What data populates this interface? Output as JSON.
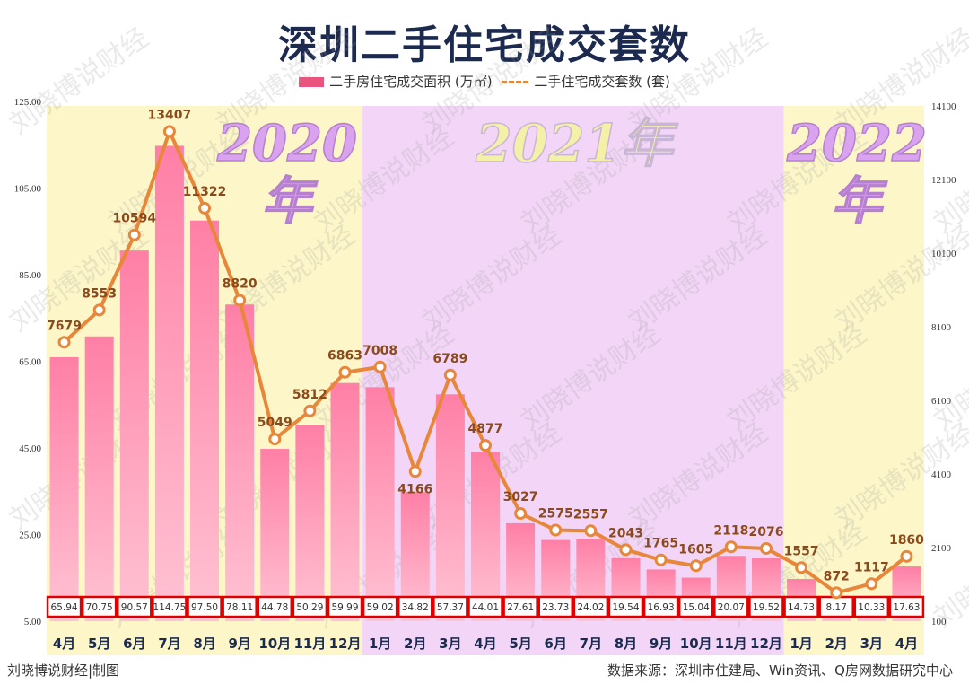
{
  "chart_data": {
    "type": "bar+line",
    "title": "深圳二手住宅成交套数",
    "legend_position": "top",
    "groups": [
      {
        "label": "2020年",
        "start": 0,
        "end": 9,
        "color": "#fdf6c8"
      },
      {
        "label": "2021年",
        "start": 9,
        "end": 21,
        "color": "#f3d6f7"
      },
      {
        "label": "2022年",
        "start": 21,
        "end": 25,
        "color": "#fdf6c8"
      }
    ],
    "categories": [
      "4月",
      "5月",
      "6月",
      "7月",
      "8月",
      "9月",
      "10月",
      "11月",
      "12月",
      "1月",
      "2月",
      "3月",
      "4月",
      "5月",
      "6月",
      "7月",
      "8月",
      "9月",
      "10月",
      "11月",
      "12月",
      "1月",
      "2月",
      "3月",
      "4月"
    ],
    "series": [
      {
        "name": "二手房住宅成交面积 (万㎡)",
        "type": "bar",
        "axis": "left",
        "color": "#e9537e",
        "values": [
          65.94,
          70.75,
          90.57,
          114.75,
          97.5,
          78.11,
          44.78,
          50.29,
          59.99,
          59.02,
          34.82,
          57.37,
          44.01,
          27.61,
          23.73,
          24.02,
          19.54,
          16.93,
          15.04,
          20.07,
          19.52,
          14.73,
          8.17,
          10.33,
          17.63
        ],
        "labels": [
          "65.94",
          "70.75",
          "90.57",
          "114.75",
          "97.50",
          "78.11",
          "44.78",
          "50.29",
          "59.99",
          "59.02",
          "34.82",
          "57.37",
          "44.01",
          "27.61",
          "23.73",
          "24.02",
          "19.54",
          "16.93",
          "15.04",
          "20.07",
          "19.52",
          "14.73",
          "8.17",
          "10.33",
          "17.63"
        ]
      },
      {
        "name": "二手住宅成交套数 (套)",
        "type": "line",
        "axis": "right",
        "color": "#e8873a",
        "values": [
          7679,
          8553,
          10594,
          13407,
          11322,
          8820,
          5049,
          5812,
          6863,
          7008,
          4166,
          6789,
          4877,
          3027,
          2575,
          2557,
          2043,
          1765,
          1605,
          2118,
          2076,
          1557,
          872,
          1117,
          1860
        ]
      }
    ],
    "left_axis": {
      "ylim": [
        5,
        125
      ],
      "ticks": [
        "5.00",
        "25.00",
        "45.00",
        "65.00",
        "85.00",
        "105.00",
        "125.00"
      ]
    },
    "right_axis": {
      "ylim": [
        100,
        14100
      ],
      "ticks": [
        "100",
        "2100",
        "4100",
        "6100",
        "8100",
        "10100",
        "12100",
        "14100"
      ]
    },
    "watermark": "刘晓博说财经"
  },
  "footer": {
    "credit": "刘晓博说财经|制图",
    "source": "数据来源：深圳市住建局、Win资讯、Q房网数据研究中心"
  }
}
